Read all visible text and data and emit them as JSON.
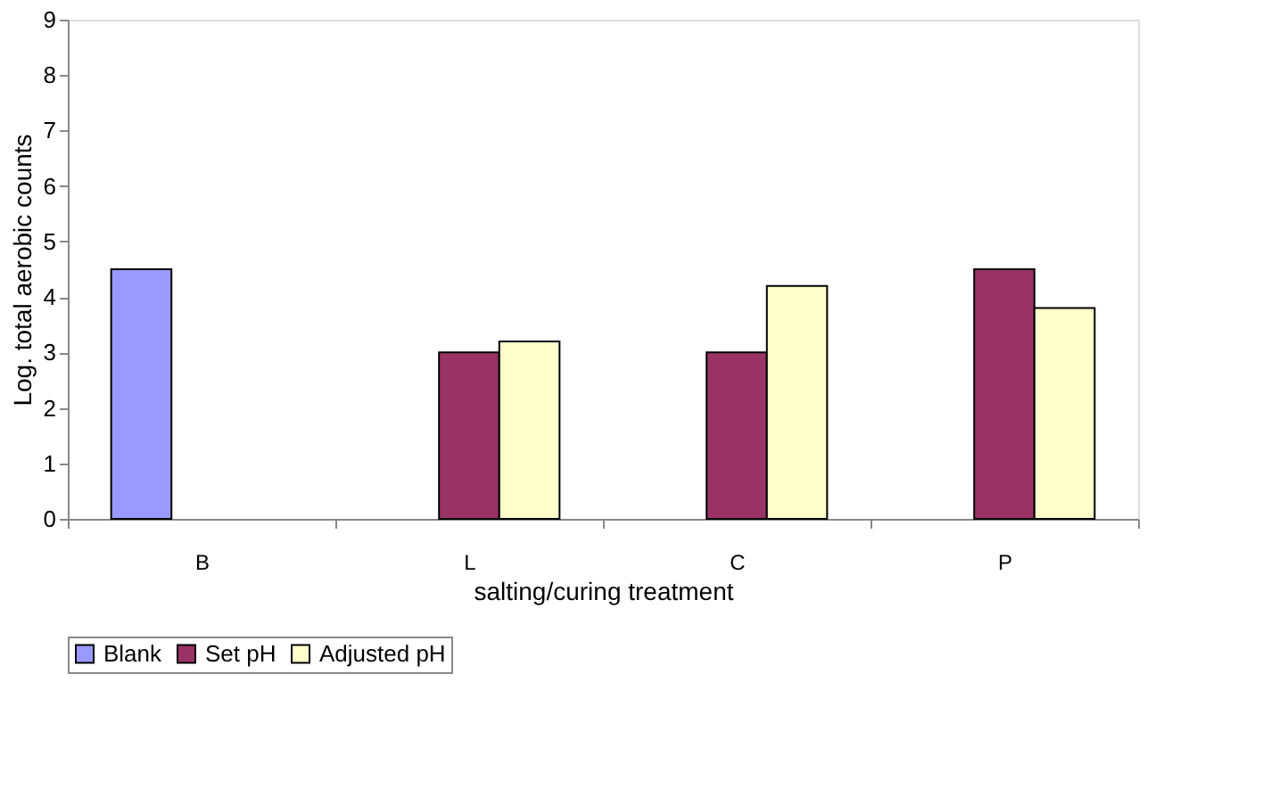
{
  "chart_data": {
    "type": "bar",
    "xlabel": "salting/curing treatment",
    "ylabel": "Log. total aerobic counts",
    "categories": [
      "B",
      "L",
      "C",
      "P"
    ],
    "series": [
      {
        "name": "Blank",
        "color": "#9999ff",
        "values": [
          4.5,
          null,
          null,
          null
        ]
      },
      {
        "name": "Set pH",
        "color": "#993366",
        "values": [
          null,
          3.0,
          3.0,
          4.5
        ]
      },
      {
        "name": "Adjusted pH",
        "color": "#ffffcc",
        "values": [
          null,
          3.2,
          4.2,
          3.8
        ]
      }
    ],
    "ylim": [
      0,
      9
    ],
    "yticks": [
      0,
      1,
      2,
      3,
      4,
      5,
      6,
      7,
      8,
      9
    ],
    "grid": false,
    "legend": "bottom"
  }
}
